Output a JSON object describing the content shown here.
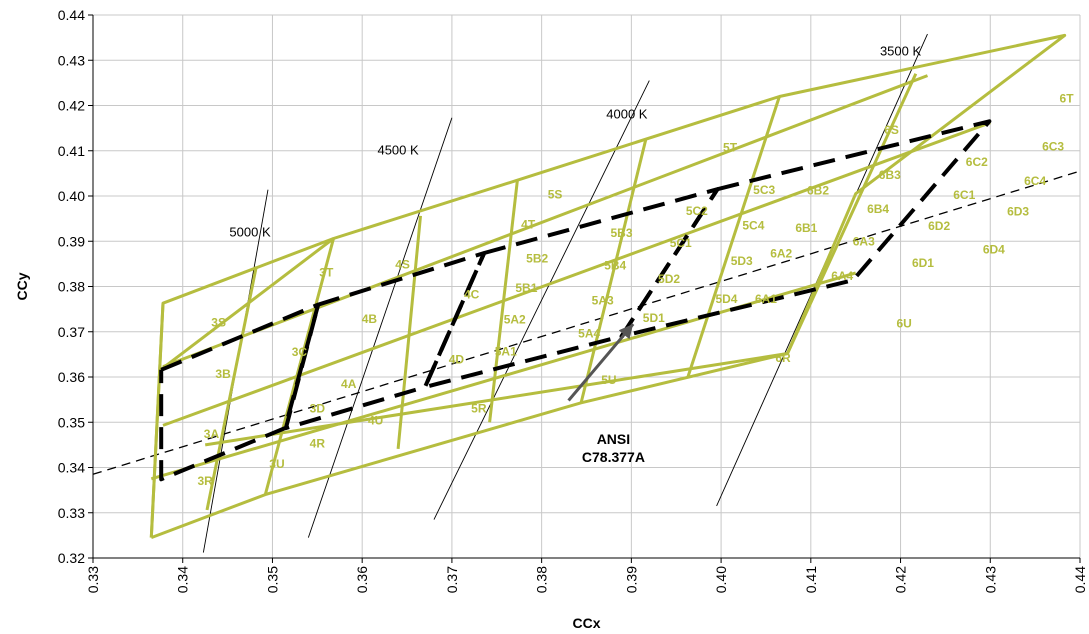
{
  "chart_data": {
    "type": "scatter",
    "xlabel": "CCx",
    "ylabel": "CCy",
    "xlim": [
      0.33,
      0.44
    ],
    "ylim": [
      0.32,
      0.44
    ],
    "grid": true,
    "colors": {
      "bins": "#b5bd3f",
      "ansi": "#000000",
      "bin_text": "#b5bd3f",
      "grid": "#c8c8c8",
      "ann_arrow": "#555555"
    },
    "x_ticks": [
      "0.33",
      "0.34",
      "0.35",
      "0.36",
      "0.37",
      "0.38",
      "0.39",
      "0.40",
      "0.41",
      "0.42",
      "0.43",
      "0.44"
    ],
    "y_ticks": [
      "0.32",
      "0.33",
      "0.34",
      "0.35",
      "0.36",
      "0.37",
      "0.38",
      "0.39",
      "0.40",
      "0.41",
      "0.42",
      "0.43",
      "0.44"
    ],
    "bin_outlines": [
      [
        [
          0.3365,
          0.3245
        ],
        [
          0.3378,
          0.3763
        ],
        [
          0.3568,
          0.3906
        ],
        [
          0.3773,
          0.4035
        ],
        [
          0.4065,
          0.422
        ],
        [
          0.4383,
          0.4355
        ],
        [
          0.415,
          0.4005
        ],
        [
          0.4074,
          0.3652
        ],
        [
          0.3844,
          0.3543
        ],
        [
          0.3492,
          0.334
        ],
        [
          0.3365,
          0.3245
        ]
      ]
    ],
    "bin_lines": [
      [
        [
          0.3378,
          0.3763
        ],
        [
          0.3365,
          0.3245
        ]
      ],
      [
        [
          0.3482,
          0.3844
        ],
        [
          0.3427,
          0.3306
        ]
      ],
      [
        [
          0.3568,
          0.3906
        ],
        [
          0.3492,
          0.334
        ]
      ],
      [
        [
          0.3665,
          0.3956
        ],
        [
          0.364,
          0.3441
        ]
      ],
      [
        [
          0.3773,
          0.4035
        ],
        [
          0.3742,
          0.35
        ]
      ],
      [
        [
          0.3916,
          0.4124
        ],
        [
          0.3844,
          0.3543
        ]
      ],
      [
        [
          0.4065,
          0.422
        ],
        [
          0.3963,
          0.36
        ]
      ],
      [
        [
          0.4217,
          0.427
        ],
        [
          0.4074,
          0.3652
        ]
      ],
      [
        [
          0.3378,
          0.3493
        ],
        [
          0.43,
          0.4162
        ]
      ],
      [
        [
          0.3378,
          0.3623
        ],
        [
          0.423,
          0.4266
        ]
      ],
      [
        [
          0.3365,
          0.3375
        ],
        [
          0.415,
          0.383
        ]
      ],
      [
        [
          0.3425,
          0.345
        ],
        [
          0.4074,
          0.3652
        ]
      ],
      [
        [
          0.3376,
          0.3617
        ],
        [
          0.3568,
          0.3906
        ]
      ]
    ],
    "ansi_quadrangles": [
      [
        [
          0.3376,
          0.3616
        ],
        [
          0.3551,
          0.376
        ],
        [
          0.3514,
          0.3487
        ],
        [
          0.3376,
          0.3374
        ],
        [
          0.3376,
          0.3616
        ]
      ],
      [
        [
          0.3551,
          0.376
        ],
        [
          0.3736,
          0.3874
        ],
        [
          0.367,
          0.3578
        ],
        [
          0.3515,
          0.3487
        ],
        [
          0.3551,
          0.376
        ]
      ],
      [
        [
          0.3736,
          0.3874
        ],
        [
          0.3996,
          0.4015
        ],
        [
          0.3889,
          0.369
        ],
        [
          0.367,
          0.3578
        ],
        [
          0.3736,
          0.3874
        ]
      ],
      [
        [
          0.3996,
          0.4015
        ],
        [
          0.4299,
          0.4165
        ],
        [
          0.4147,
          0.3814
        ],
        [
          0.3889,
          0.369
        ],
        [
          0.3996,
          0.4015
        ]
      ]
    ],
    "cct_lines": [
      {
        "label": "5000 K",
        "from": [
          0.3423,
          0.3212
        ],
        "to": [
          0.3495,
          0.4014
        ],
        "label_pos": [
          0.3475,
          0.391
        ]
      },
      {
        "label": "4500 K",
        "from": [
          0.354,
          0.3245
        ],
        "to": [
          0.37,
          0.4173
        ],
        "label_pos": [
          0.364,
          0.4092
        ]
      },
      {
        "label": "4000 K",
        "from": [
          0.368,
          0.3285
        ],
        "to": [
          0.392,
          0.4255
        ],
        "label_pos": [
          0.3895,
          0.4171
        ]
      },
      {
        "label": "3500 K",
        "from": [
          0.3995,
          0.3315
        ],
        "to": [
          0.423,
          0.4358
        ],
        "label_pos": [
          0.42,
          0.431
        ]
      }
    ],
    "blackbody_line": {
      "from": [
        0.33,
        0.3385
      ],
      "to": [
        0.44,
        0.4055
      ]
    },
    "annotation": {
      "lines": [
        "ANSI",
        "C78.377A"
      ],
      "text_pos": [
        0.388,
        0.3452
      ],
      "arrow_from": [
        0.383,
        0.3548
      ],
      "arrow_to": [
        0.3902,
        0.3717
      ]
    },
    "bins": [
      {
        "label": "3S",
        "x": 0.344,
        "y": 0.3712
      },
      {
        "label": "3T",
        "x": 0.356,
        "y": 0.3822
      },
      {
        "label": "3C",
        "x": 0.353,
        "y": 0.3646
      },
      {
        "label": "3B",
        "x": 0.3445,
        "y": 0.3598
      },
      {
        "label": "3D",
        "x": 0.355,
        "y": 0.3521
      },
      {
        "label": "3A",
        "x": 0.3432,
        "y": 0.3465
      },
      {
        "label": "3U",
        "x": 0.3505,
        "y": 0.3399
      },
      {
        "label": "3R",
        "x": 0.3425,
        "y": 0.3361
      },
      {
        "label": "4S",
        "x": 0.3645,
        "y": 0.384
      },
      {
        "label": "4T",
        "x": 0.3785,
        "y": 0.3928
      },
      {
        "label": "4B",
        "x": 0.3608,
        "y": 0.3719
      },
      {
        "label": "4C",
        "x": 0.3722,
        "y": 0.3773
      },
      {
        "label": "4A",
        "x": 0.3585,
        "y": 0.3576
      },
      {
        "label": "4D",
        "x": 0.3705,
        "y": 0.363
      },
      {
        "label": "4U",
        "x": 0.3615,
        "y": 0.3495
      },
      {
        "label": "4R",
        "x": 0.355,
        "y": 0.3444
      },
      {
        "label": "5S",
        "x": 0.3815,
        "y": 0.3995
      },
      {
        "label": "5T",
        "x": 0.401,
        "y": 0.4098
      },
      {
        "label": "5B2",
        "x": 0.3795,
        "y": 0.3853
      },
      {
        "label": "5B3",
        "x": 0.3889,
        "y": 0.3909
      },
      {
        "label": "5B1",
        "x": 0.3783,
        "y": 0.3788
      },
      {
        "label": "5B4",
        "x": 0.3882,
        "y": 0.3838
      },
      {
        "label": "5C2",
        "x": 0.3973,
        "y": 0.3958
      },
      {
        "label": "5C3",
        "x": 0.4048,
        "y": 0.4004
      },
      {
        "label": "5C1",
        "x": 0.3955,
        "y": 0.3887
      },
      {
        "label": "5C4",
        "x": 0.4036,
        "y": 0.3926
      },
      {
        "label": "5A2",
        "x": 0.377,
        "y": 0.3718
      },
      {
        "label": "5A3",
        "x": 0.3868,
        "y": 0.376
      },
      {
        "label": "5A1",
        "x": 0.376,
        "y": 0.3648
      },
      {
        "label": "5A4",
        "x": 0.3853,
        "y": 0.3687
      },
      {
        "label": "5D2",
        "x": 0.3942,
        "y": 0.3808
      },
      {
        "label": "5D3",
        "x": 0.4023,
        "y": 0.3847
      },
      {
        "label": "5D1",
        "x": 0.3925,
        "y": 0.3722
      },
      {
        "label": "5D4",
        "x": 0.4006,
        "y": 0.3763
      },
      {
        "label": "5U",
        "x": 0.3875,
        "y": 0.3584
      },
      {
        "label": "5R",
        "x": 0.373,
        "y": 0.3521
      },
      {
        "label": "6S",
        "x": 0.419,
        "y": 0.4137
      },
      {
        "label": "6T",
        "x": 0.4385,
        "y": 0.4207
      },
      {
        "label": "6B2",
        "x": 0.4108,
        "y": 0.4003
      },
      {
        "label": "6B3",
        "x": 0.4188,
        "y": 0.4038
      },
      {
        "label": "6B1",
        "x": 0.4095,
        "y": 0.392
      },
      {
        "label": "6B4",
        "x": 0.4175,
        "y": 0.3962
      },
      {
        "label": "6C2",
        "x": 0.4285,
        "y": 0.4066
      },
      {
        "label": "6C3",
        "x": 0.437,
        "y": 0.4101
      },
      {
        "label": "6C1",
        "x": 0.4271,
        "y": 0.3993
      },
      {
        "label": "6C4",
        "x": 0.435,
        "y": 0.4024
      },
      {
        "label": "6A2",
        "x": 0.4067,
        "y": 0.3864
      },
      {
        "label": "6A3",
        "x": 0.4159,
        "y": 0.3891
      },
      {
        "label": "6A1",
        "x": 0.405,
        "y": 0.3764
      },
      {
        "label": "6A4",
        "x": 0.4135,
        "y": 0.3814
      },
      {
        "label": "6D2",
        "x": 0.4243,
        "y": 0.3925
      },
      {
        "label": "6D3",
        "x": 0.4331,
        "y": 0.3957
      },
      {
        "label": "6D1",
        "x": 0.4225,
        "y": 0.3843
      },
      {
        "label": "6D4",
        "x": 0.4304,
        "y": 0.3873
      },
      {
        "label": "6U",
        "x": 0.4204,
        "y": 0.3709
      },
      {
        "label": "6R",
        "x": 0.4069,
        "y": 0.3633
      }
    ]
  }
}
